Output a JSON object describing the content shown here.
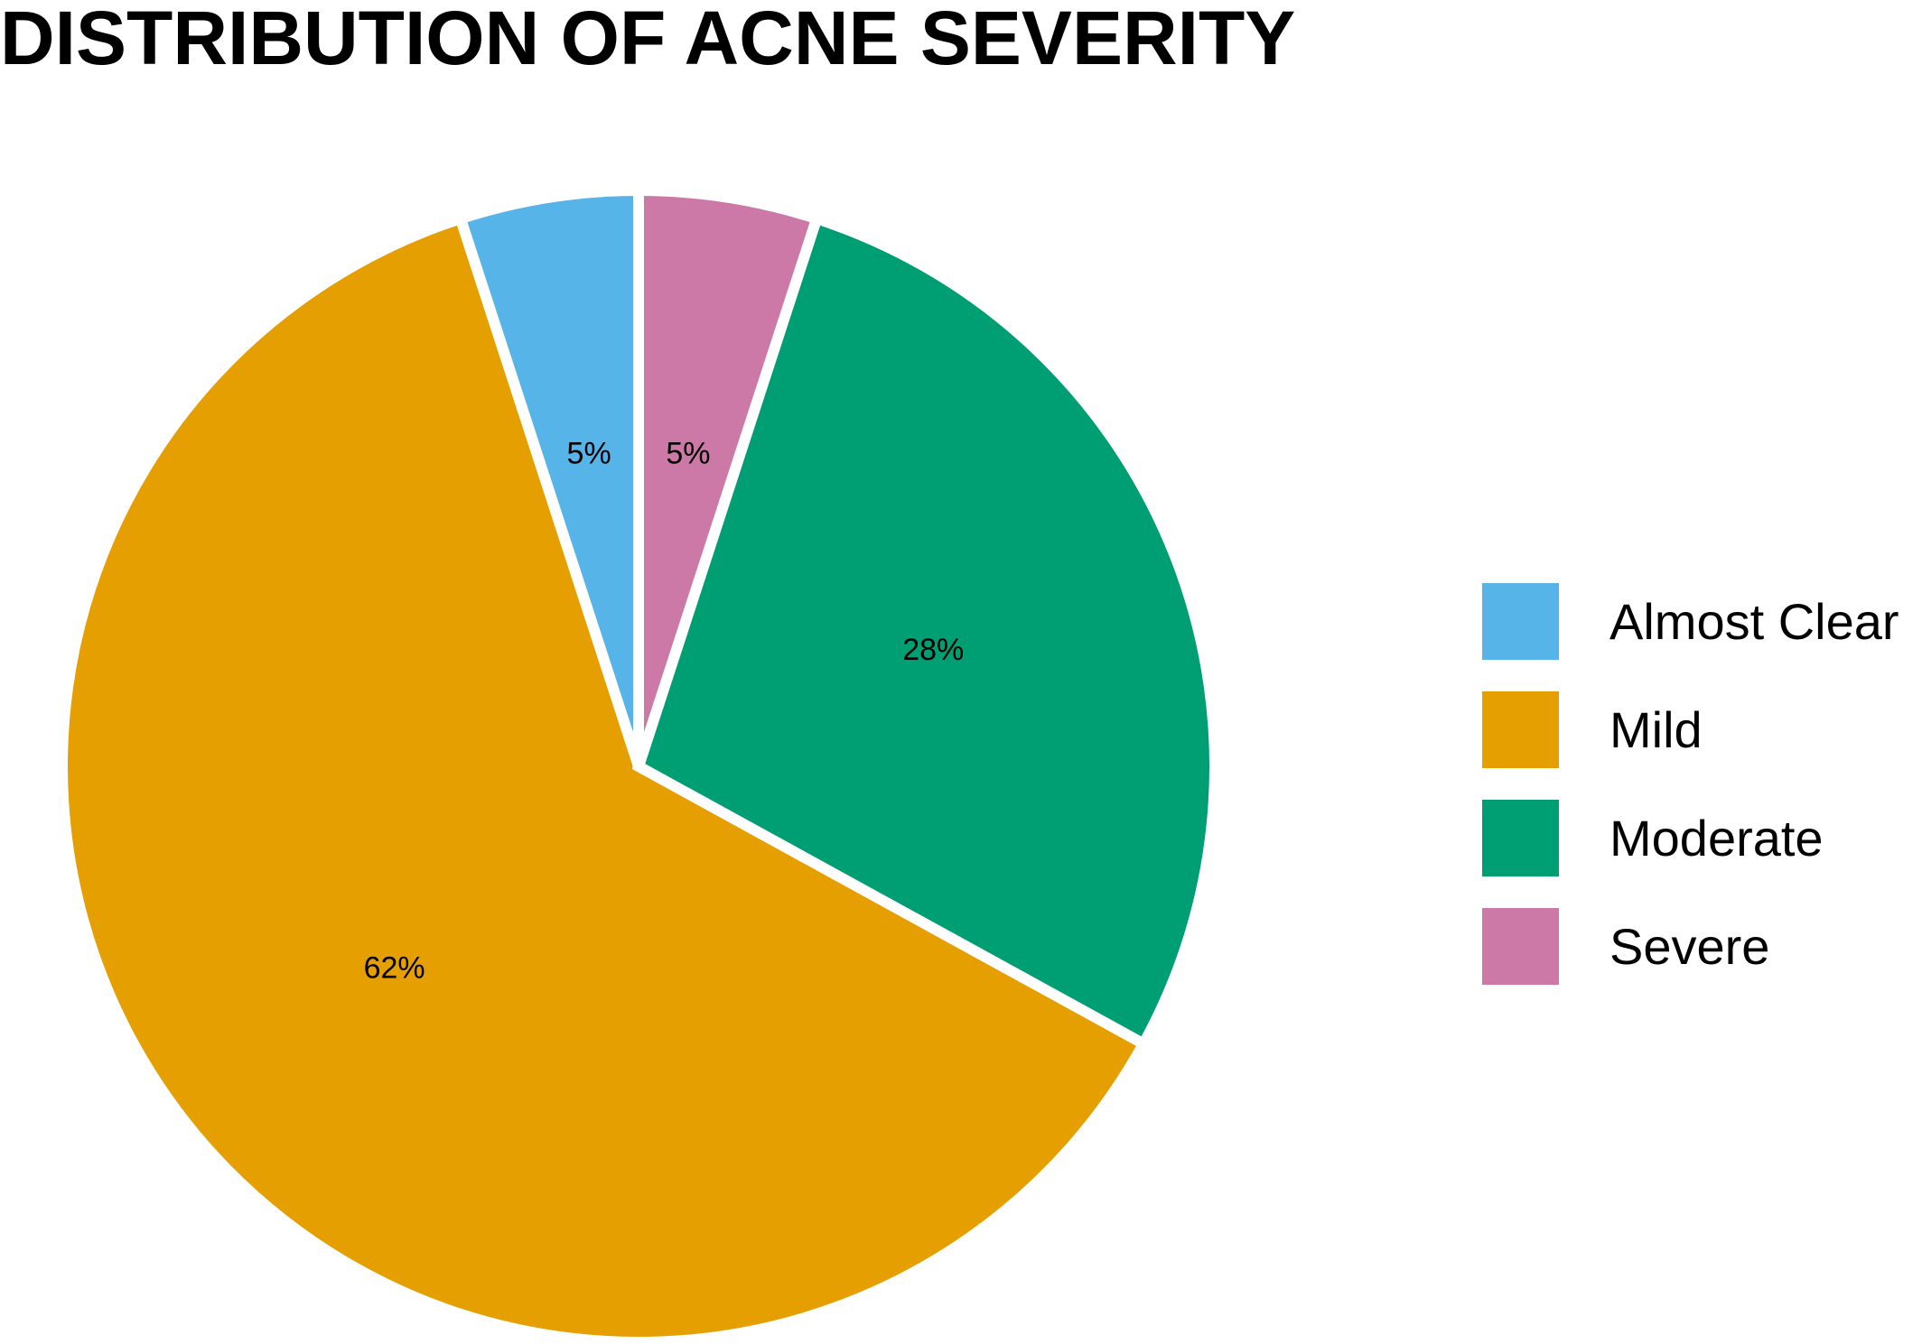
{
  "chart_data": {
    "type": "pie",
    "title": "DISTRIBUTION OF ACNE SEVERITY",
    "categories": [
      "Almost Clear",
      "Mild",
      "Moderate",
      "Severe"
    ],
    "values": [
      5,
      62,
      28,
      5
    ],
    "labels": [
      "5%",
      "62%",
      "28%",
      "5%"
    ],
    "colors": [
      "#56B4E9",
      "#E69F00",
      "#009E73",
      "#CC79A7"
    ],
    "start_angle_deg": 0,
    "direction": "counterclockwise",
    "legend_position": "right"
  }
}
